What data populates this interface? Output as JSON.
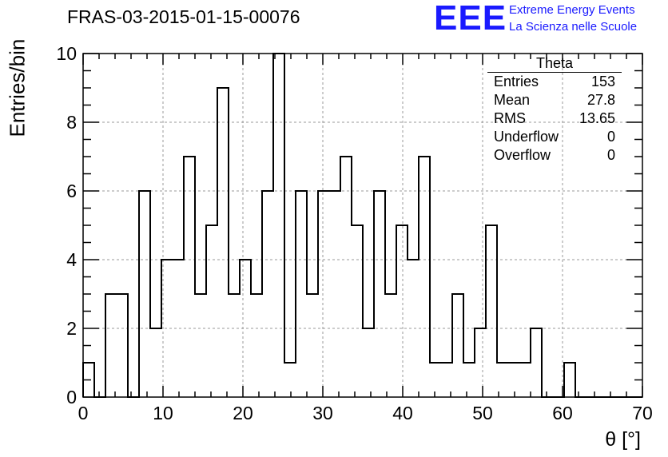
{
  "title": "FRAS-03-2015-01-15-00076",
  "logo": {
    "mark": "EEE",
    "line1": "Extreme Energy Events",
    "line2": "La Scienza nelle Scuole",
    "color": "#1a1aff"
  },
  "stats": {
    "name": "Theta",
    "rows": [
      {
        "label": "Entries",
        "value": "153"
      },
      {
        "label": "Mean",
        "value": "27.8"
      },
      {
        "label": "RMS",
        "value": "13.65"
      },
      {
        "label": "Underflow",
        "value": "0"
      },
      {
        "label": "Overflow",
        "value": "0"
      }
    ]
  },
  "chart_data": {
    "type": "histogram",
    "xlabel": "θ [°]",
    "ylabel": "Entries/bin",
    "xlim": [
      0,
      70
    ],
    "ylim": [
      0,
      10
    ],
    "x_ticks": [
      0,
      10,
      20,
      30,
      40,
      50,
      60,
      70
    ],
    "y_ticks": [
      0,
      2,
      4,
      6,
      8,
      10
    ],
    "grid": true,
    "bin_width": 1.4,
    "bin_start": 0,
    "values": [
      1,
      0,
      3,
      3,
      0,
      6,
      2,
      4,
      4,
      7,
      3,
      5,
      9,
      3,
      4,
      3,
      6,
      10,
      1,
      6,
      3,
      6,
      6,
      7,
      5,
      2,
      6,
      3,
      5,
      4,
      7,
      1,
      1,
      3,
      1,
      2,
      5,
      1,
      1,
      1,
      2,
      0,
      0,
      1,
      0,
      0,
      0,
      0,
      0,
      0
    ]
  }
}
